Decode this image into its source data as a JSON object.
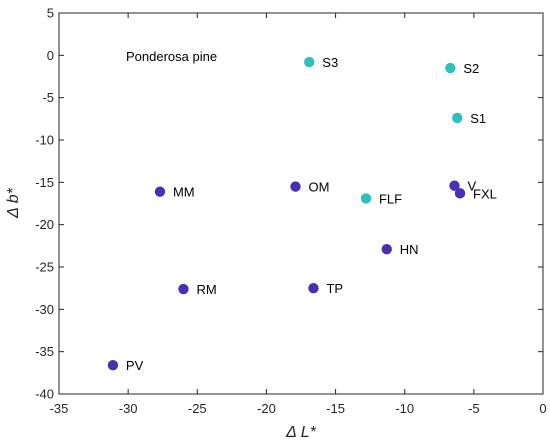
{
  "chart_data": {
    "type": "scatter",
    "title": "",
    "annotation": "Ponderosa pine",
    "xlabel": "Δ L*",
    "ylabel": "Δ b*",
    "xlim": [
      -35,
      0
    ],
    "ylim": [
      -40,
      5
    ],
    "xticks": [
      -35,
      -30,
      -25,
      -20,
      -15,
      -10,
      -5,
      0
    ],
    "yticks": [
      5,
      0,
      -5,
      -10,
      -15,
      -20,
      -25,
      -30,
      -35,
      -40
    ],
    "grid": false,
    "legend": "none",
    "colors": {
      "group_a": "#4a2fb5",
      "group_b": "#2ebfbf"
    },
    "points": [
      {
        "label": "S3",
        "x": -16.9,
        "y": -0.8,
        "group": "group_b"
      },
      {
        "label": "S2",
        "x": -6.7,
        "y": -1.5,
        "group": "group_b"
      },
      {
        "label": "S1",
        "x": -6.2,
        "y": -7.4,
        "group": "group_b"
      },
      {
        "label": "FLF",
        "x": -12.8,
        "y": -16.9,
        "group": "group_b"
      },
      {
        "label": "V",
        "x": -6.4,
        "y": -15.4,
        "group": "group_a"
      },
      {
        "label": "FXL",
        "x": -6.0,
        "y": -16.3,
        "group": "group_a"
      },
      {
        "label": "MM",
        "x": -27.7,
        "y": -16.1,
        "group": "group_a"
      },
      {
        "label": "OM",
        "x": -17.9,
        "y": -15.5,
        "group": "group_a"
      },
      {
        "label": "HN",
        "x": -11.3,
        "y": -22.9,
        "group": "group_a"
      },
      {
        "label": "RM",
        "x": -26.0,
        "y": -27.6,
        "group": "group_a"
      },
      {
        "label": "TP",
        "x": -16.6,
        "y": -27.5,
        "group": "group_a"
      },
      {
        "label": "PV",
        "x": -31.1,
        "y": -36.6,
        "group": "group_a"
      }
    ]
  }
}
